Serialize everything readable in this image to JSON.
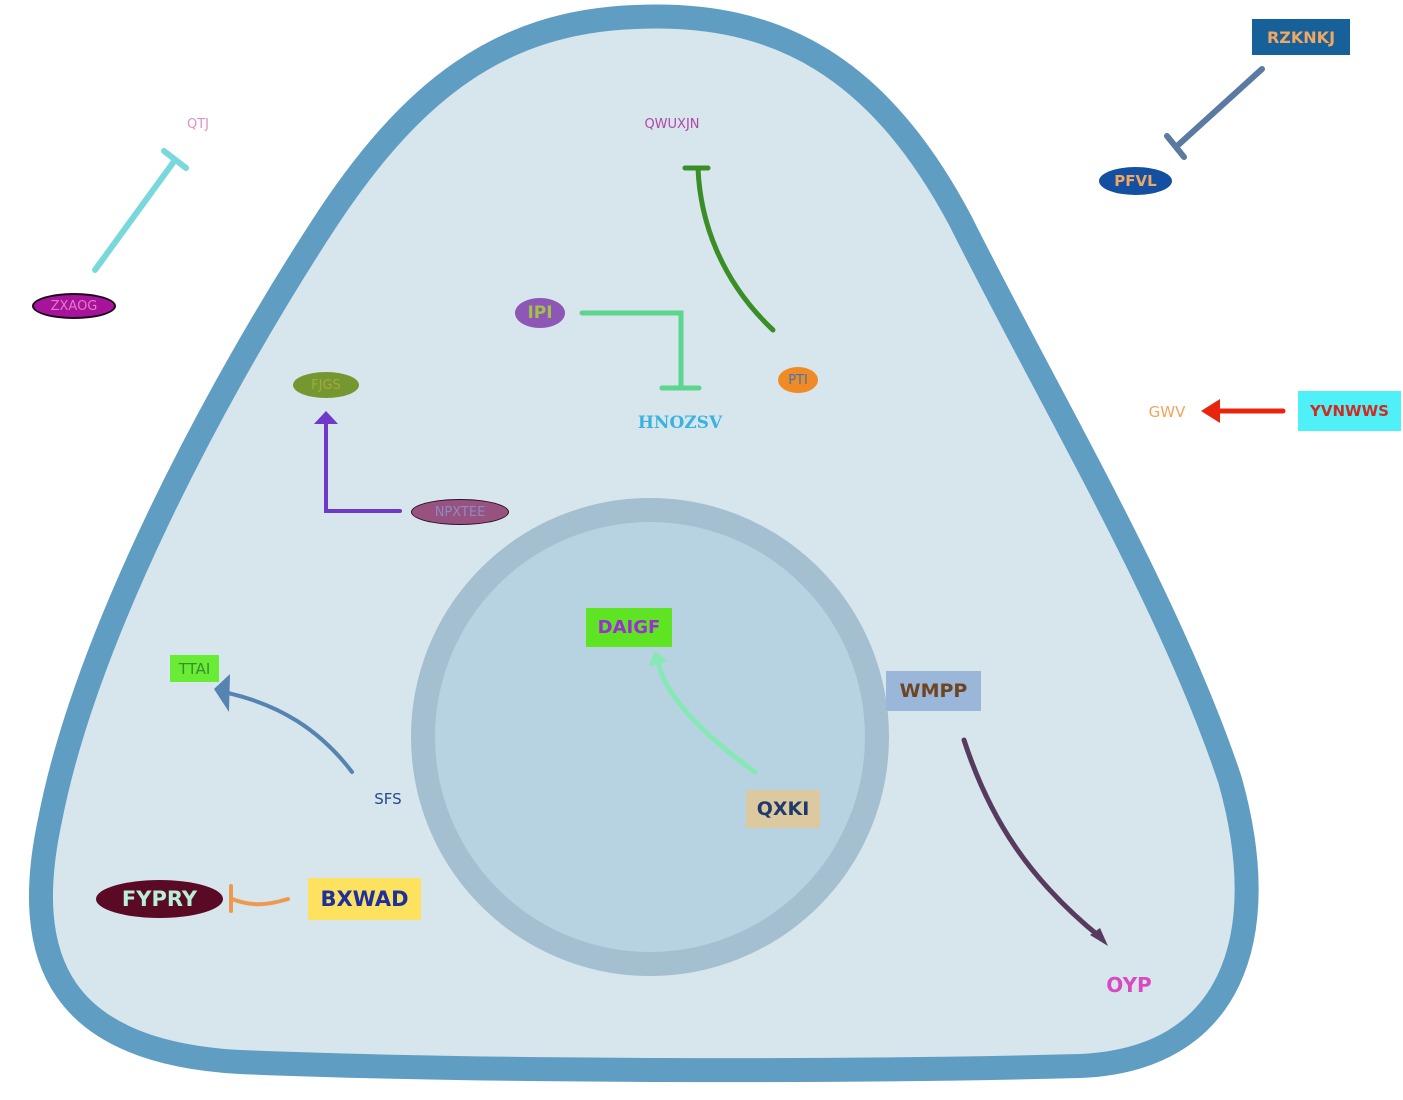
{
  "colors": {
    "cell_fill": "#d7e5ed",
    "cell_membrane": "#5f9dc3",
    "nucleus_fill": "#b7d3e2",
    "nucleus_membrane": "#a3bfd0"
  },
  "nodes": {
    "qtj": {
      "text": "QTJ",
      "color": "#e58fc1",
      "bg": ""
    },
    "zxaog": {
      "text": "ZXAOG",
      "color": "#e37bc6",
      "bg": "#a7139a"
    },
    "qwuxjn": {
      "text": "QWUXJN",
      "color": "#b347a8",
      "bg": ""
    },
    "rzknkj": {
      "text": "RZKNKJ",
      "color": "#f0a761",
      "bg": "#17619b"
    },
    "pfvl": {
      "text": "PFVL",
      "color": "#f0a761",
      "bg": "#1450a2"
    },
    "ipi": {
      "text": "IPI",
      "color": "#a0c24a",
      "bg": "#8e57b6"
    },
    "hnozsv": {
      "text": "HNOZSV",
      "color": "#3ab3de",
      "bg": ""
    },
    "pti": {
      "text": "PTI",
      "color": "#3d75c4",
      "bg": "#f08a24"
    },
    "fjgs": {
      "text": "FJGS",
      "color": "#a4a842",
      "bg": "#75972f"
    },
    "npxtee": {
      "text": "NPXTEE",
      "color": "#8c8ac4",
      "bg": "#98527f"
    },
    "gwv": {
      "text": "GWV",
      "color": "#f3a35d",
      "bg": ""
    },
    "yvnwws": {
      "text": "YVNWWS",
      "color": "#d12a1e",
      "bg": "#4ff0f8"
    },
    "daigf": {
      "text": "DAIGF",
      "color": "#9b2fd0",
      "bg": "#5ee423"
    },
    "wmpp": {
      "text": "WMPP",
      "color": "#6e4523",
      "bg": "#9ab6d9"
    },
    "ttai": {
      "text": "TTAI",
      "color": "#3a8d2a",
      "bg": "#69ec36"
    },
    "sfs": {
      "text": "SFS",
      "color": "#234a8e",
      "bg": ""
    },
    "qxki": {
      "text": "QXKI",
      "color": "#203a6b",
      "bg": "#dcc9a0"
    },
    "fypry": {
      "text": "FYPRY",
      "color": "#b9efd9",
      "bg": "#5b0a25"
    },
    "bxwad": {
      "text": "BXWAD",
      "color": "#1f2f9c",
      "bg": "#fce25e"
    },
    "oyp": {
      "text": "OYP",
      "color": "#d94ac1",
      "bg": ""
    }
  },
  "edges": [
    {
      "from": "ZXAOG",
      "to": "QTJ",
      "type": "inhibition",
      "color": "#79d8dc"
    },
    {
      "from": "PTI",
      "to": "QWUXJN",
      "type": "inhibition",
      "color": "#3a8e26"
    },
    {
      "from": "RZKNKJ",
      "to": "PFVL",
      "type": "inhibition",
      "color": "#5a7aa2"
    },
    {
      "from": "IPI",
      "to": "HNOZSV",
      "type": "inhibition",
      "color": "#5cd58d"
    },
    {
      "from": "NPXTEE",
      "to": "FJGS",
      "type": "activation",
      "color": "#7039c9"
    },
    {
      "from": "YVNWWS",
      "to": "GWV",
      "type": "activation",
      "color": "#e8240f"
    },
    {
      "from": "QXKI",
      "to": "DAIGF",
      "type": "activation",
      "color": "#85e8b5"
    },
    {
      "from": "SFS",
      "to": "TTAI",
      "type": "activation",
      "color": "#5684b0"
    },
    {
      "from": "WMPP",
      "to": "OYP",
      "type": "activation",
      "color": "#573b5e"
    },
    {
      "from": "BXWAD",
      "to": "FYPRY",
      "type": "inhibition",
      "color": "#ee9a4e"
    }
  ]
}
